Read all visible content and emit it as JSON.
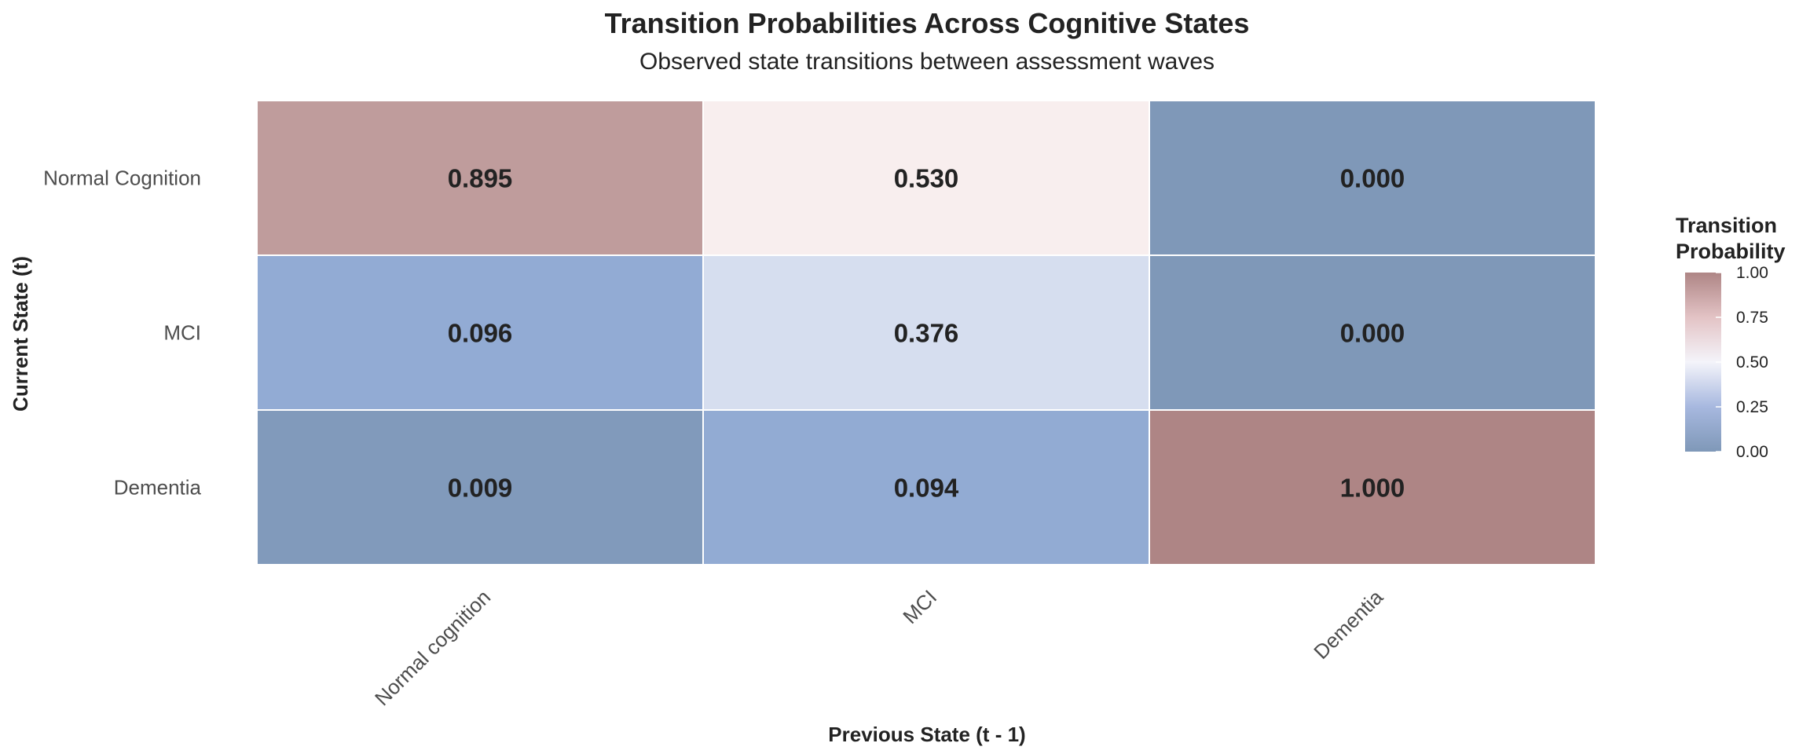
{
  "chart_data": {
    "type": "heatmap",
    "title": "Transition Probabilities Across Cognitive States",
    "subtitle": "Observed state transitions between assessment waves",
    "xlabel": "Previous State (t - 1)",
    "ylabel": "Current State (t)",
    "x_categories": [
      "Normal cognition",
      "MCI",
      "Dementia"
    ],
    "y_categories": [
      "Normal Cognition",
      "MCI",
      "Dementia"
    ],
    "values": [
      [
        0.895,
        0.53,
        0.0
      ],
      [
        0.096,
        0.376,
        0.0
      ],
      [
        0.009,
        0.094,
        1.0
      ]
    ],
    "value_labels": [
      [
        "0.895",
        "0.530",
        "0.000"
      ],
      [
        "0.096",
        "0.376",
        "0.000"
      ],
      [
        "0.009",
        "0.094",
        "1.000"
      ]
    ],
    "legend": {
      "title_lines": [
        "Transition",
        "Probability"
      ],
      "ticks": [
        "0.00",
        "0.25",
        "0.50",
        "0.75",
        "1.00"
      ],
      "range": [
        0,
        1
      ],
      "placement": "right"
    },
    "colors": {
      "low": "#7f98b8",
      "low_mid": "#93acd5",
      "mid": "#f4f4fa",
      "high_mid": "#f8eeee",
      "high": "#ae8585",
      "cell_border": "#ffffff"
    },
    "grid": false
  }
}
